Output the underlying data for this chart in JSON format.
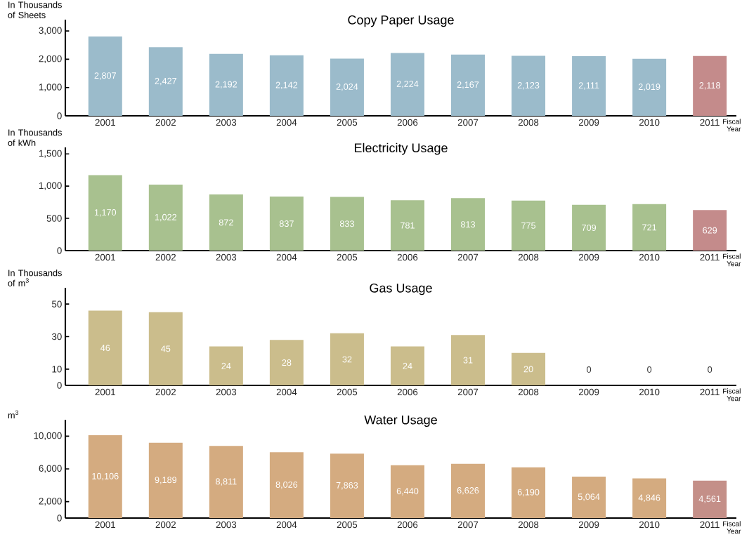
{
  "chart_data": [
    {
      "type": "bar",
      "title": "Copy Paper Usage",
      "ylabel": "In Thousands of Sheets",
      "xlabel": "Fiscal Year",
      "categories": [
        "2001",
        "2002",
        "2003",
        "2004",
        "2005",
        "2006",
        "2007",
        "2008",
        "2009",
        "2010",
        "2011"
      ],
      "values": [
        2807,
        2427,
        2192,
        2142,
        2024,
        2224,
        2167,
        2123,
        2111,
        2019,
        2118
      ],
      "value_labels": [
        "2,807",
        "2,427",
        "2,192",
        "2,142",
        "2,024",
        "2,224",
        "2,167",
        "2,123",
        "2,111",
        "2,019",
        "2,118"
      ],
      "colors": [
        "#9bbbcb",
        "#9bbbcb",
        "#9bbbcb",
        "#9bbbcb",
        "#9bbbcb",
        "#9bbbcb",
        "#9bbbcb",
        "#9bbbcb",
        "#9bbbcb",
        "#9bbbcb",
        "#c48b8b"
      ],
      "ylim": [
        0,
        3400
      ],
      "yticks": [
        0,
        {
          "value": 1000,
          "label": "1,000"
        },
        {
          "value": 2000,
          "label": "2,000"
        },
        {
          "value": 3000,
          "label": "3,000"
        }
      ]
    },
    {
      "type": "bar",
      "title": "Electricity Usage",
      "ylabel": "In Thousands of kWh",
      "xlabel": "Fiscal Year",
      "categories": [
        "2001",
        "2002",
        "2003",
        "2004",
        "2005",
        "2006",
        "2007",
        "2008",
        "2009",
        "2010",
        "2011"
      ],
      "values": [
        1170,
        1022,
        872,
        837,
        833,
        781,
        813,
        775,
        709,
        721,
        629
      ],
      "value_labels": [
        "1,170",
        "1,022",
        "872",
        "837",
        "833",
        "781",
        "813",
        "775",
        "709",
        "721",
        "629"
      ],
      "colors": [
        "#a8c18f",
        "#a8c18f",
        "#a8c18f",
        "#a8c18f",
        "#a8c18f",
        "#a8c18f",
        "#a8c18f",
        "#a8c18f",
        "#a8c18f",
        "#a8c18f",
        "#c48b8b"
      ],
      "ylim": [
        0,
        1600
      ],
      "yticks": [
        0,
        500,
        {
          "value": 1000,
          "label": "1,000"
        },
        {
          "value": 1500,
          "label": "1,500"
        }
      ]
    },
    {
      "type": "bar",
      "title": "Gas Usage",
      "ylabel": "In Thousands of m$^{3}$",
      "xlabel": "Fiscal Year",
      "categories": [
        "2001",
        "2002",
        "2003",
        "2004",
        "2005",
        "2006",
        "2007",
        "2008",
        "2009",
        "2010",
        "2011"
      ],
      "values": [
        46,
        45,
        24,
        28,
        32,
        24,
        31,
        20,
        0,
        0,
        0
      ],
      "value_labels": [
        "46",
        "45",
        "24",
        "28",
        "32",
        "24",
        "31",
        "20",
        "0",
        "0",
        "0"
      ],
      "colors": [
        "#cbbd8c",
        "#cbbd8c",
        "#cbbd8c",
        "#cbbd8c",
        "#cbbd8c",
        "#cbbd8c",
        "#cbbd8c",
        "#cbbd8c",
        "#cbbd8c",
        "#cbbd8c",
        "#cbbd8c"
      ],
      "ylim": [
        0,
        60
      ],
      "yticks": [
        0,
        10,
        30,
        50
      ]
    },
    {
      "type": "bar",
      "title": "Water Usage",
      "ylabel": "m$^{3}$",
      "xlabel": "Fiscal Year",
      "categories": [
        "2001",
        "2002",
        "2003",
        "2004",
        "2005",
        "2006",
        "2007",
        "2008",
        "2009",
        "2010",
        "2011"
      ],
      "values": [
        10106,
        9189,
        8811,
        8026,
        7863,
        6440,
        6626,
        6190,
        5064,
        4846,
        4561
      ],
      "value_labels": [
        "10,106",
        "9,189",
        "8,811",
        "8,026",
        "7,863",
        "6,440",
        "6,626",
        "6,190",
        "5,064",
        "4,846",
        "4,561"
      ],
      "colors": [
        "#d4ab80",
        "#d4ab80",
        "#d4ab80",
        "#d4ab80",
        "#d4ab80",
        "#d4ab80",
        "#d4ab80",
        "#d4ab80",
        "#d4ab80",
        "#d4ab80",
        "#c48f88"
      ],
      "ylim": [
        0,
        12000
      ],
      "yticks": [
        0,
        {
          "value": 2000,
          "label": "2,000"
        },
        {
          "value": 6000,
          "label": "6,000"
        },
        {
          "value": 10000,
          "label": "10,000"
        }
      ]
    }
  ]
}
